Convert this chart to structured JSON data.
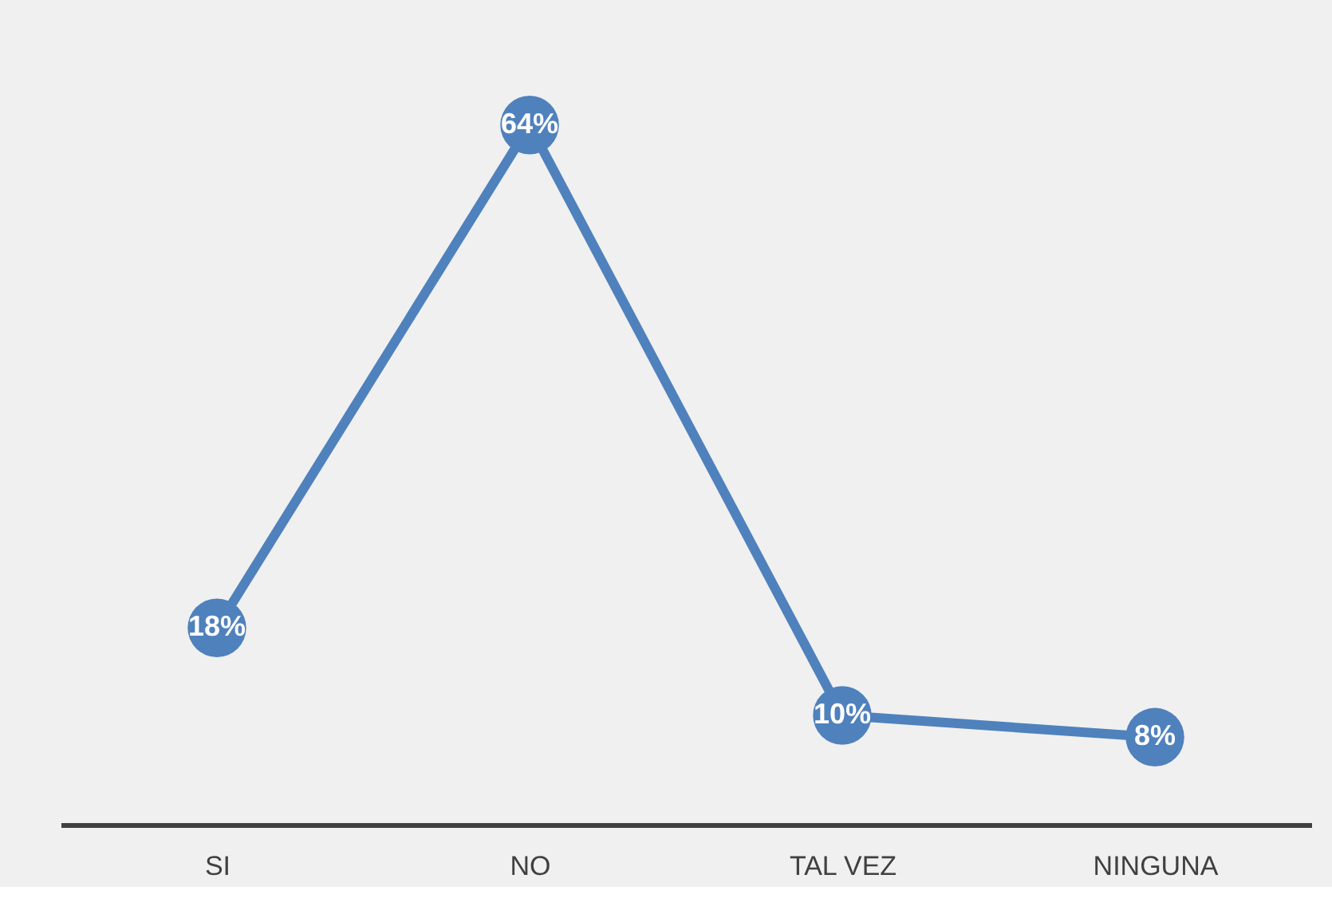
{
  "chart_data": {
    "type": "line",
    "categories": [
      "SI",
      "NO",
      "TAL VEZ",
      "NINGUNA"
    ],
    "series": [
      {
        "color": "#4f81bd",
        "values": [
          18,
          64,
          10,
          8
        ],
        "value_labels": [
          "18%",
          "64%",
          "10%",
          "8%"
        ]
      }
    ],
    "marker": "circle",
    "line_style": "solid",
    "grid": false
  }
}
